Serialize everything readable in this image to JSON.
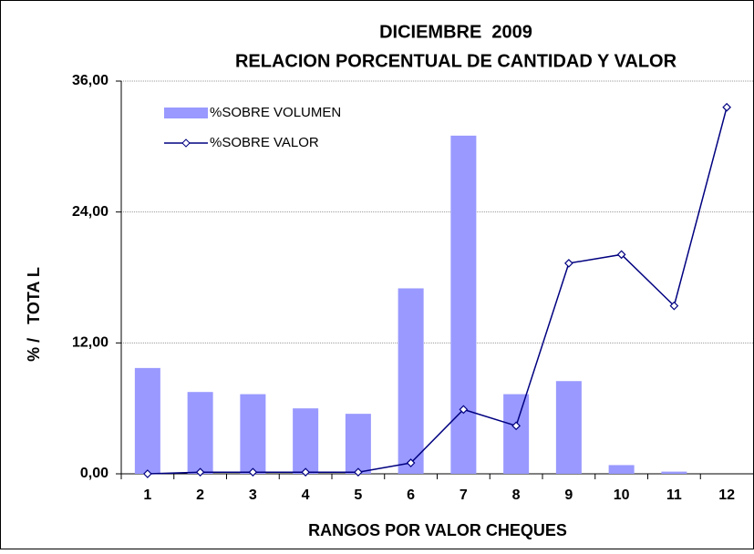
{
  "chart_data": {
    "type": "bar_line",
    "title": "DICIEMBRE  2009",
    "subtitle": "RELACION PORCENTUAL DE CANTIDAD Y VALOR",
    "x_label": "RANGOS POR VALOR CHEQUES",
    "y_label": "% /   TOTA L",
    "categories": [
      "1",
      "2",
      "3",
      "4",
      "5",
      "6",
      "7",
      "8",
      "9",
      "10",
      "11",
      "12"
    ],
    "series": [
      {
        "name": "%SOBRE VOLUMEN",
        "type": "bar",
        "color": "#9999ff",
        "values": [
          9.7,
          7.5,
          7.3,
          6.0,
          5.5,
          17.0,
          31.0,
          7.3,
          8.5,
          0.8,
          0.2,
          0
        ]
      },
      {
        "name": "%SOBRE VALOR",
        "type": "line",
        "color": "#000080",
        "values": [
          0,
          0.15,
          0.15,
          0.15,
          0.15,
          1.0,
          5.9,
          4.4,
          19.3,
          20.1,
          15.4,
          33.6
        ]
      }
    ],
    "ylim": [
      0,
      36
    ],
    "yticks": [
      {
        "value": 0,
        "label": "0,00"
      },
      {
        "value": 12,
        "label": "12,00"
      },
      {
        "value": 24,
        "label": "24,00"
      },
      {
        "value": 36,
        "label": "36,00"
      }
    ],
    "grid": true,
    "legend": "upper left"
  }
}
